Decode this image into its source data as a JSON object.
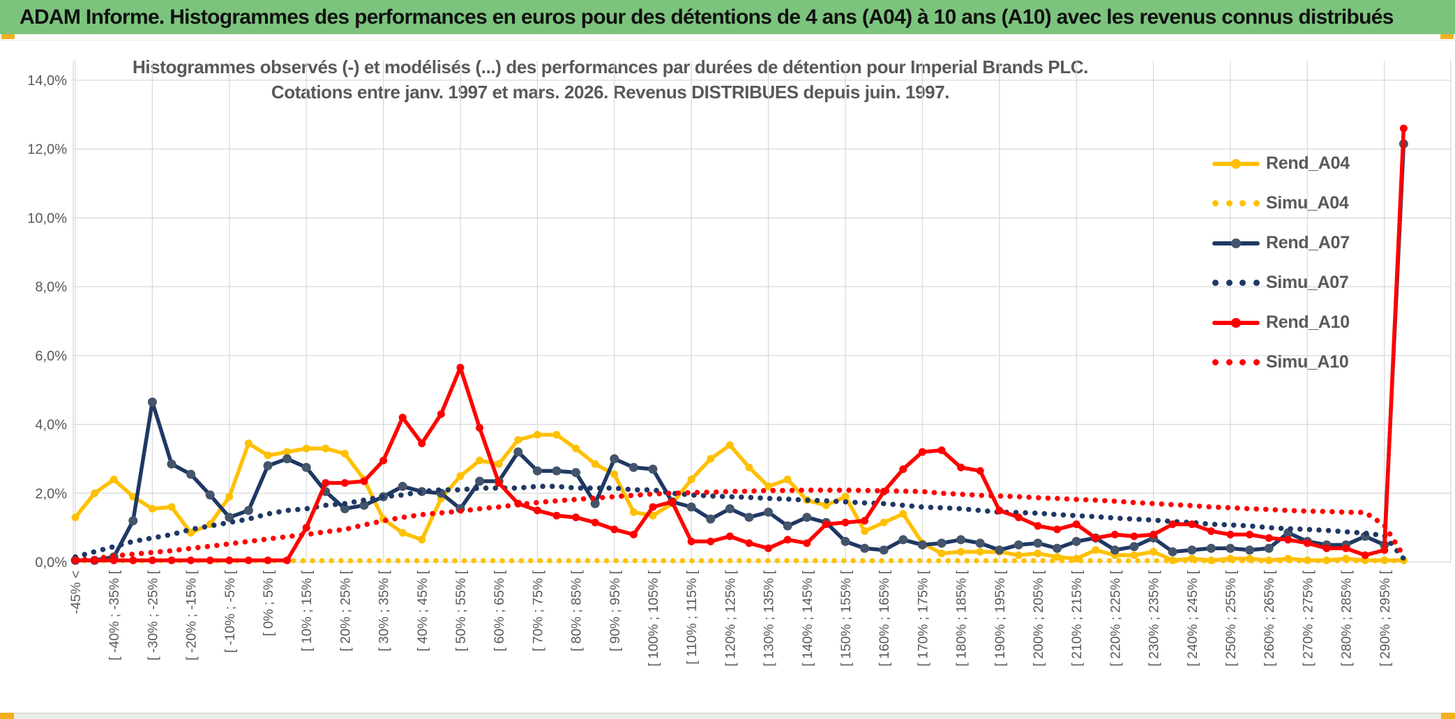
{
  "banner": {
    "title": "ADAM Informe. Histogrammes des performances en euros pour des détentions de 4 ans (A04) à 10 ans (A10) avec les revenus connus distribués"
  },
  "colors": {
    "banner_green": "#7CC47D",
    "accent_yellow": "#F2B01E",
    "text_gray": "#595959",
    "grid": "#D9D9D9",
    "series_gold": "#FFC000",
    "series_navy": "#1F3864",
    "series_navy_marker": "#44546A",
    "series_red": "#FF0000"
  },
  "chart_data": {
    "type": "line",
    "title_line1": "Histogrammes observés (-) et modélisés (...) des performances par durées de détention pour Imperial Brands PLC.",
    "title_line2": "Cotations entre janv. 1997 et mars. 2026. Revenus DISTRIBUES depuis juin. 1997.",
    "ylim": [
      0,
      14
    ],
    "ytick_step": 2,
    "ytick_labels": [
      "0,0%",
      "2,0%",
      "4,0%",
      "6,0%",
      "8,0%",
      "10,0%",
      "12,0%",
      "14,0%"
    ],
    "grid": true,
    "legend_position": "right-inside",
    "categories": [
      "-45% <",
      "",
      "[ -40% ; -35% [",
      "",
      "[ -30% ; -25% [",
      "",
      "[ -20% ; -15% [",
      "",
      "[ -10% ; -5% [",
      "",
      "[ 0% ; 5% [",
      "",
      "[ 10% ; 15% [",
      "",
      "[ 20% ; 25% [",
      "",
      "[ 30% ; 35% [",
      "",
      "[ 40% ; 45% [",
      "",
      "[ 50% ; 55% [",
      "",
      "[ 60% ; 65% [",
      "",
      "[ 70% ; 75% [",
      "",
      "[ 80% ; 85% [",
      "",
      "[ 90% ; 95% [",
      "",
      "[ 100% ; 105% [",
      "",
      "[ 110% ; 115% [",
      "",
      "[ 120% ; 125% [",
      "",
      "[ 130% ; 135% [",
      "",
      "[ 140% ; 145% [",
      "",
      "[ 150% ; 155% [",
      "",
      "[ 160% ; 165% [",
      "",
      "[ 170% ; 175% [",
      "",
      "[ 180% ; 185% [",
      "",
      "[ 190% ; 195% [",
      "",
      "[ 200% ; 205% [",
      "",
      "[ 210% ; 215% [",
      "",
      "[ 220% ; 225% [",
      "",
      "[ 230% ; 235% [",
      "",
      "[ 240% ; 245% [",
      "",
      "[ 250% ; 255% [",
      "",
      "[ 260% ; 265% [",
      "",
      "[ 270% ; 275% [",
      "",
      "[ 280% ; 285% [",
      "",
      "[ 290% ; 295% [",
      ""
    ],
    "series": [
      {
        "name": "Rend_A04",
        "color": "#FFC000",
        "marker_color": "#FFC000",
        "style": "solid",
        "marker": "circle",
        "values": [
          1.3,
          2.0,
          2.4,
          1.9,
          1.55,
          1.6,
          0.85,
          1.1,
          1.9,
          3.45,
          3.1,
          3.2,
          3.3,
          3.3,
          3.15,
          2.4,
          1.25,
          0.85,
          0.65,
          1.85,
          2.5,
          2.95,
          2.85,
          3.55,
          3.7,
          3.7,
          3.3,
          2.85,
          2.55,
          1.45,
          1.35,
          1.7,
          2.4,
          3.0,
          3.4,
          2.75,
          2.2,
          2.4,
          1.8,
          1.65,
          1.9,
          0.9,
          1.15,
          1.4,
          0.55,
          0.25,
          0.3,
          0.3,
          0.3,
          0.2,
          0.25,
          0.15,
          0.1,
          0.35,
          0.2,
          0.2,
          0.3,
          0.05,
          0.1,
          0.05,
          0.1,
          0.1,
          0.05,
          0.1,
          0.05,
          0.05,
          0.1,
          0.05,
          0.05,
          0.05
        ]
      },
      {
        "name": "Simu_A04",
        "color": "#FFC000",
        "marker_color": "#FFC000",
        "style": "dotted",
        "marker": "none",
        "values": [
          0.04,
          0.04,
          0.04,
          0.04,
          0.04,
          0.04,
          0.04,
          0.04,
          0.04,
          0.04,
          0.04,
          0.04,
          0.04,
          0.04,
          0.04,
          0.04,
          0.04,
          0.04,
          0.04,
          0.04,
          0.04,
          0.04,
          0.04,
          0.04,
          0.04,
          0.04,
          0.04,
          0.04,
          0.04,
          0.04,
          0.04,
          0.04,
          0.04,
          0.04,
          0.04,
          0.04,
          0.04,
          0.04,
          0.04,
          0.04,
          0.04,
          0.04,
          0.04,
          0.04,
          0.04,
          0.04,
          0.04,
          0.04,
          0.04,
          0.04,
          0.04,
          0.04,
          0.04,
          0.04,
          0.04,
          0.04,
          0.04,
          0.04,
          0.04,
          0.04,
          0.04,
          0.04,
          0.04,
          0.04,
          0.04,
          0.04,
          0.04,
          0.04,
          0.04,
          0.04
        ]
      },
      {
        "name": "Rend_A07",
        "color": "#1F3864",
        "marker_color": "#44546A",
        "style": "solid",
        "marker": "circle",
        "values": [
          0.05,
          0.05,
          0.15,
          1.2,
          4.65,
          2.85,
          2.55,
          1.95,
          1.3,
          1.5,
          2.8,
          3.0,
          2.75,
          2.05,
          1.55,
          1.65,
          1.9,
          2.2,
          2.05,
          2.0,
          1.55,
          2.35,
          2.35,
          3.2,
          2.65,
          2.65,
          2.6,
          1.7,
          3.0,
          2.75,
          2.7,
          1.75,
          1.6,
          1.25,
          1.55,
          1.3,
          1.45,
          1.05,
          1.3,
          1.15,
          0.6,
          0.4,
          0.35,
          0.65,
          0.5,
          0.55,
          0.65,
          0.55,
          0.35,
          0.5,
          0.55,
          0.4,
          0.6,
          0.7,
          0.35,
          0.45,
          0.7,
          0.3,
          0.35,
          0.4,
          0.4,
          0.35,
          0.4,
          0.85,
          0.6,
          0.5,
          0.5,
          0.75,
          0.5,
          12.15
        ]
      },
      {
        "name": "Simu_A07",
        "color": "#1F3864",
        "marker_color": "#1F3864",
        "style": "dotted",
        "marker": "none",
        "values": [
          0.15,
          0.3,
          0.45,
          0.6,
          0.7,
          0.8,
          0.95,
          1.05,
          1.15,
          1.25,
          1.4,
          1.5,
          1.55,
          1.65,
          1.7,
          1.8,
          1.9,
          1.95,
          2.05,
          2.1,
          2.1,
          2.15,
          2.15,
          2.15,
          2.2,
          2.2,
          2.15,
          2.15,
          2.15,
          2.1,
          2.1,
          2.0,
          1.95,
          1.92,
          1.9,
          1.88,
          1.85,
          1.83,
          1.8,
          1.78,
          1.75,
          1.72,
          1.7,
          1.65,
          1.6,
          1.58,
          1.55,
          1.5,
          1.45,
          1.44,
          1.42,
          1.38,
          1.35,
          1.32,
          1.28,
          1.25,
          1.22,
          1.18,
          1.15,
          1.1,
          1.08,
          1.05,
          1.0,
          0.97,
          0.95,
          0.92,
          0.88,
          0.84,
          0.77,
          0.1
        ]
      },
      {
        "name": "Rend_A10",
        "color": "#FF0000",
        "marker_color": "#FF0000",
        "style": "solid",
        "marker": "circle",
        "values": [
          0.05,
          0.05,
          0.05,
          0.05,
          0.05,
          0.05,
          0.05,
          0.05,
          0.05,
          0.05,
          0.05,
          0.05,
          1.0,
          2.3,
          2.3,
          2.35,
          2.95,
          4.2,
          3.45,
          4.3,
          5.65,
          3.9,
          2.3,
          1.7,
          1.5,
          1.35,
          1.3,
          1.15,
          0.95,
          0.8,
          1.6,
          1.75,
          0.6,
          0.6,
          0.75,
          0.55,
          0.4,
          0.65,
          0.55,
          1.1,
          1.15,
          1.2,
          2.05,
          2.7,
          3.2,
          3.25,
          2.75,
          2.65,
          1.5,
          1.3,
          1.05,
          0.95,
          1.1,
          0.7,
          0.8,
          0.75,
          0.8,
          1.1,
          1.1,
          0.9,
          0.8,
          0.8,
          0.7,
          0.65,
          0.55,
          0.4,
          0.4,
          0.2,
          0.35,
          12.6
        ]
      },
      {
        "name": "Simu_A10",
        "color": "#FF0000",
        "marker_color": "#FF0000",
        "style": "dotted",
        "marker": "none",
        "values": [
          0.05,
          0.1,
          0.18,
          0.23,
          0.28,
          0.33,
          0.4,
          0.46,
          0.53,
          0.6,
          0.67,
          0.74,
          0.8,
          0.88,
          0.95,
          1.08,
          1.2,
          1.3,
          1.38,
          1.43,
          1.48,
          1.55,
          1.6,
          1.67,
          1.73,
          1.78,
          1.82,
          1.86,
          1.9,
          1.94,
          1.98,
          2.0,
          2.02,
          2.03,
          2.05,
          2.06,
          2.08,
          2.08,
          2.09,
          2.09,
          2.09,
          2.08,
          2.07,
          2.06,
          2.05,
          2.0,
          1.97,
          1.94,
          1.92,
          1.9,
          1.87,
          1.85,
          1.82,
          1.8,
          1.77,
          1.73,
          1.7,
          1.67,
          1.64,
          1.6,
          1.58,
          1.55,
          1.53,
          1.5,
          1.48,
          1.47,
          1.45,
          1.44,
          1.07,
          0.18
        ]
      }
    ]
  }
}
